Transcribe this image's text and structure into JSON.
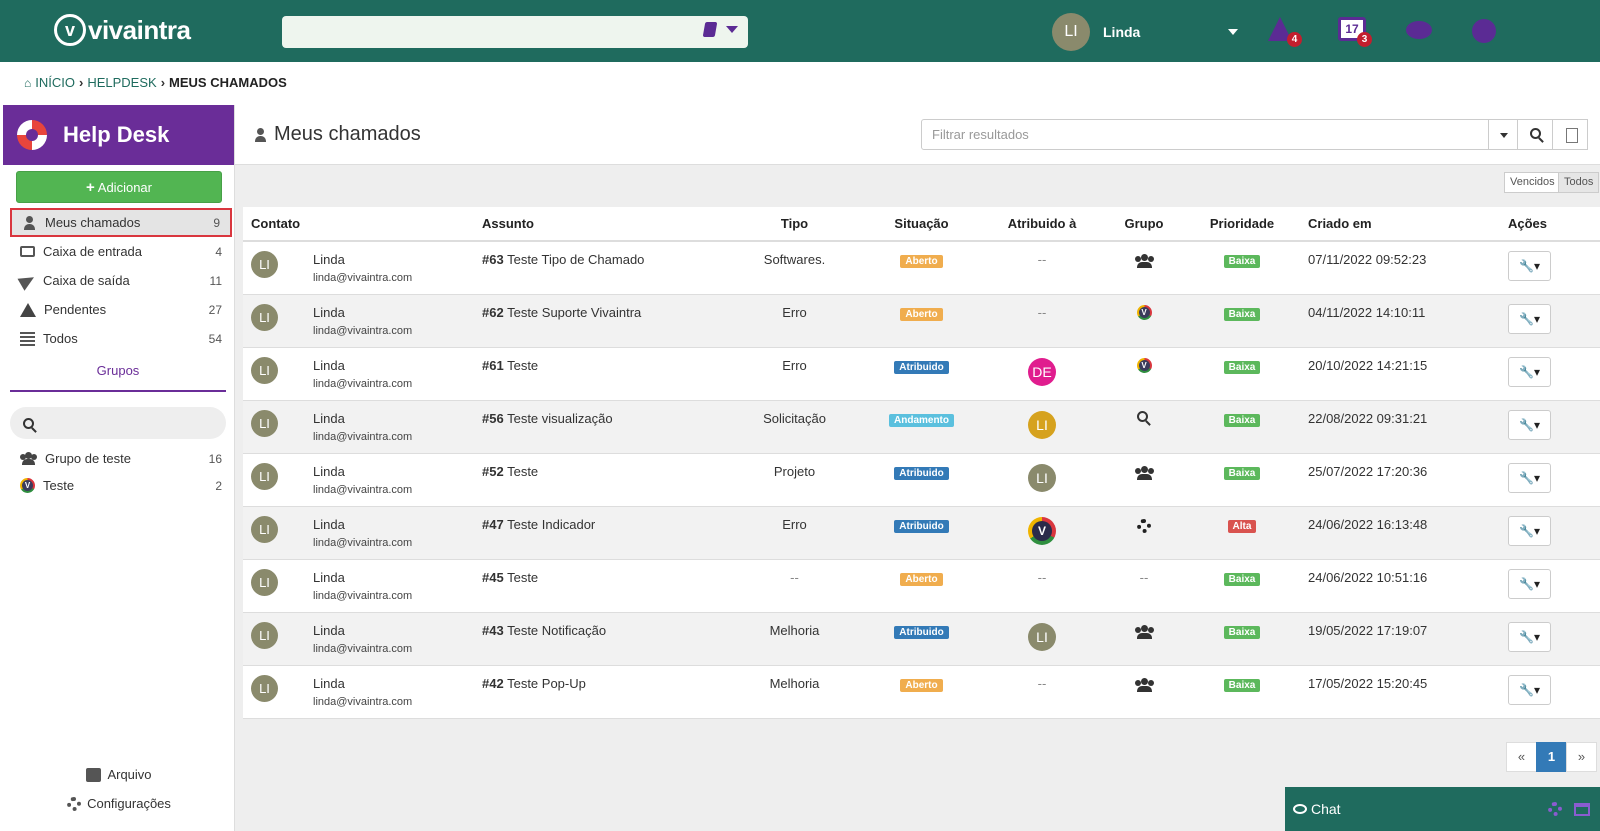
{
  "brand": {
    "name": "vivaintra",
    "mark": "v"
  },
  "topbar": {
    "user_initials": "LI",
    "user_name": "Linda",
    "alerts_count": "4",
    "calendar_day": "17",
    "calendar_count": "3"
  },
  "breadcrumb": [
    {
      "label": "INÍCIO"
    },
    {
      "label": "HELPDESK"
    },
    {
      "label": "MEUS CHAMADOS"
    }
  ],
  "helpdesk": {
    "title": "Help Desk",
    "add_label": "Adicionar",
    "nav": [
      {
        "label": "Meus chamados",
        "count": "9",
        "icon": "user-icon"
      },
      {
        "label": "Caixa de entrada",
        "count": "4",
        "icon": "inbox-icon"
      },
      {
        "label": "Caixa de saída",
        "count": "11",
        "icon": "send-icon"
      },
      {
        "label": "Pendentes",
        "count": "27",
        "icon": "warning-icon"
      },
      {
        "label": "Todos",
        "count": "54",
        "icon": "list-icon"
      }
    ],
    "groups_tab": "Grupos",
    "groups": [
      {
        "label": "Grupo de teste",
        "count": "16",
        "icon": "users-icon"
      },
      {
        "label": "Teste",
        "count": "2",
        "icon": "vivaintra-logo-icon"
      }
    ],
    "footer": [
      {
        "label": "Arquivo",
        "icon": "book-icon"
      },
      {
        "label": "Configurações",
        "icon": "gear-icon"
      }
    ]
  },
  "main": {
    "title": "Meus chamados",
    "filter_placeholder": "Filtrar resultados",
    "toggles": [
      "Vencidos",
      "Todos"
    ],
    "columns": [
      "Contato",
      "Assunto",
      "Tipo",
      "Situação",
      "Atribuido à",
      "Grupo",
      "Prioridade",
      "Criado em",
      "Ações"
    ],
    "rows": [
      {
        "initials": "LI",
        "name": "Linda",
        "email": "linda@vivaintra.com",
        "id": "#63",
        "subject": "Teste Tipo de Chamado",
        "type": "Softwares.",
        "status": "Aberto",
        "assignee": "--",
        "group": "users",
        "priority": "Baixa",
        "created": "07/11/2022 09:52:23"
      },
      {
        "initials": "LI",
        "name": "Linda",
        "email": "linda@vivaintra.com",
        "id": "#62",
        "subject": "Teste Suporte Vivaintra",
        "type": "Erro",
        "status": "Aberto",
        "assignee": "--",
        "group": "vivaintra",
        "priority": "Baixa",
        "created": "04/11/2022 14:10:11"
      },
      {
        "initials": "LI",
        "name": "Linda",
        "email": "linda@vivaintra.com",
        "id": "#61",
        "subject": "Teste",
        "type": "Erro",
        "status": "Atribuido",
        "assignee": "DE",
        "group": "vivaintra",
        "priority": "Baixa",
        "created": "20/10/2022 14:21:15"
      },
      {
        "initials": "LI",
        "name": "Linda",
        "email": "linda@vivaintra.com",
        "id": "#56",
        "subject": "Teste visualização",
        "type": "Solicitação",
        "status": "Andamento",
        "assignee": "LI",
        "group": "search",
        "priority": "Baixa",
        "created": "22/08/2022 09:31:21"
      },
      {
        "initials": "LI",
        "name": "Linda",
        "email": "linda@vivaintra.com",
        "id": "#52",
        "subject": "Teste",
        "type": "Projeto",
        "status": "Atribuido",
        "assignee": "LI",
        "group": "users",
        "priority": "Baixa",
        "created": "25/07/2022 17:20:36"
      },
      {
        "initials": "LI",
        "name": "Linda",
        "email": "linda@vivaintra.com",
        "id": "#47",
        "subject": "Teste Indicador",
        "type": "Erro",
        "status": "Atribuido",
        "assignee": "V",
        "group": "gear",
        "priority": "Alta",
        "created": "24/06/2022 16:13:48"
      },
      {
        "initials": "LI",
        "name": "Linda",
        "email": "linda@vivaintra.com",
        "id": "#45",
        "subject": "Teste",
        "type": "--",
        "status": "Aberto",
        "assignee": "--",
        "group": "--",
        "priority": "Baixa",
        "created": "24/06/2022 10:51:16"
      },
      {
        "initials": "LI",
        "name": "Linda",
        "email": "linda@vivaintra.com",
        "id": "#43",
        "subject": "Teste Notificação",
        "type": "Melhoria",
        "status": "Atribuido",
        "assignee": "LI",
        "group": "users",
        "priority": "Baixa",
        "created": "19/05/2022 17:19:07"
      },
      {
        "initials": "LI",
        "name": "Linda",
        "email": "linda@vivaintra.com",
        "id": "#42",
        "subject": "Teste Pop-Up",
        "type": "Melhoria",
        "status": "Aberto",
        "assignee": "--",
        "group": "users",
        "priority": "Baixa",
        "created": "17/05/2022 15:20:45"
      }
    ],
    "pagination": {
      "prev": "«",
      "current": "1",
      "next": "»"
    }
  },
  "chat": {
    "label": "Chat"
  }
}
